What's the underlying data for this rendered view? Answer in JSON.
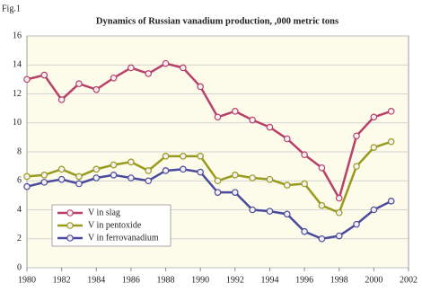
{
  "figure_label": "Fig.1",
  "chart_data": {
    "type": "line",
    "title": "Dynamics of Russian vanadium production, ,000 metric tons",
    "x": [
      1980,
      1981,
      1982,
      1983,
      1984,
      1985,
      1986,
      1987,
      1988,
      1989,
      1990,
      1991,
      1992,
      1993,
      1994,
      1995,
      1996,
      1997,
      1998,
      1999,
      2000,
      2001
    ],
    "series": [
      {
        "name": "V in slag",
        "color": "#b8406a",
        "values": [
          13.0,
          13.3,
          11.6,
          12.7,
          12.3,
          13.1,
          13.8,
          13.4,
          14.1,
          13.8,
          12.5,
          10.4,
          10.8,
          10.2,
          9.7,
          8.9,
          7.8,
          6.9,
          4.8,
          9.1,
          10.4,
          10.8
        ]
      },
      {
        "name": "V in pentoxide",
        "color": "#9a9a1e",
        "values": [
          6.3,
          6.4,
          6.8,
          6.3,
          6.8,
          7.1,
          7.3,
          6.7,
          7.7,
          7.7,
          7.7,
          6.0,
          6.4,
          6.2,
          6.1,
          5.7,
          5.8,
          4.3,
          3.8,
          7.0,
          8.3,
          8.7
        ]
      },
      {
        "name": "V in ferrovanadium",
        "color": "#4a4a9e",
        "values": [
          5.6,
          5.9,
          6.1,
          5.8,
          6.2,
          6.4,
          6.2,
          6.0,
          6.7,
          6.8,
          6.6,
          5.2,
          5.2,
          4.0,
          3.9,
          3.7,
          2.5,
          2.0,
          2.2,
          3.0,
          4.0,
          4.6
        ]
      }
    ],
    "xlim": [
      1980,
      2002
    ],
    "xticks": [
      1980,
      1982,
      1984,
      1986,
      1988,
      1990,
      1992,
      1994,
      1996,
      1998,
      2000,
      2002
    ],
    "ylim": [
      0,
      16
    ],
    "yticks": [
      0,
      2,
      4,
      6,
      8,
      10,
      12,
      14,
      16
    ],
    "grid": true,
    "legend": "lower-left"
  }
}
